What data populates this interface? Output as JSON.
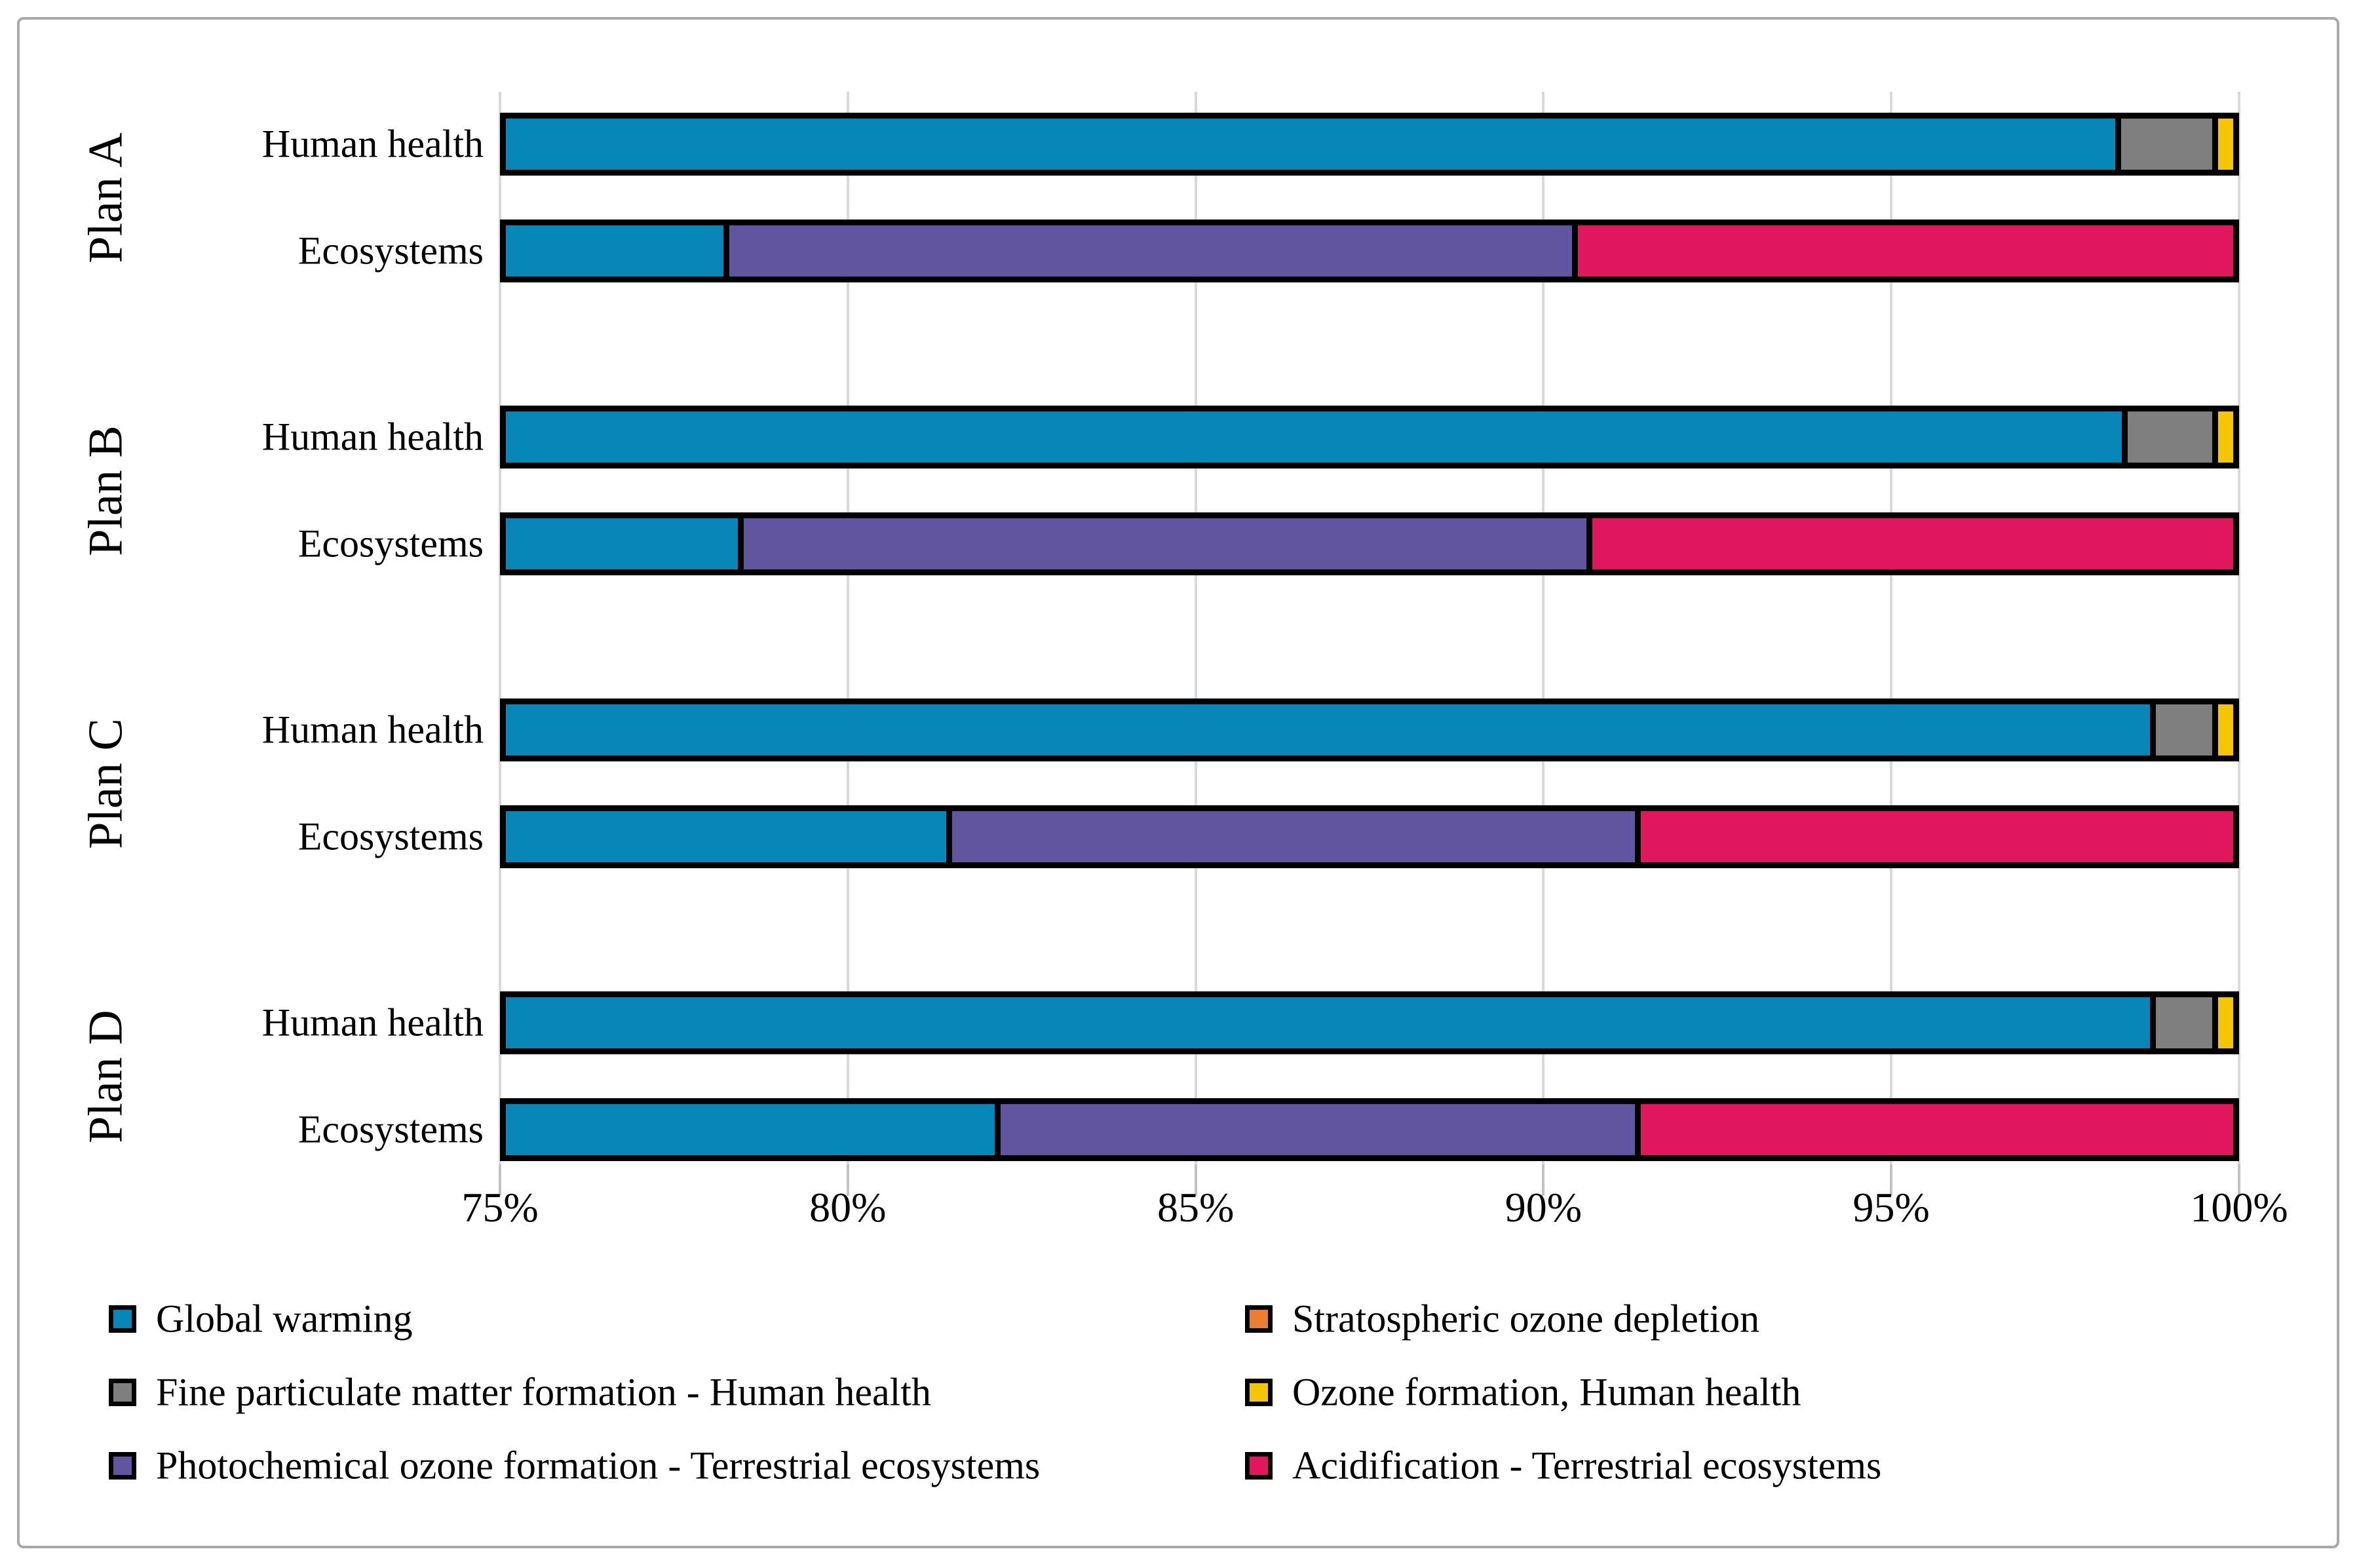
{
  "chart_data": {
    "type": "bar",
    "stacked": true,
    "orientation": "horizontal",
    "axis": {
      "min": 75,
      "max": 100,
      "unit": "%",
      "tick_values": [
        75,
        80,
        85,
        90,
        95,
        100
      ],
      "tick_labels": [
        "75%",
        "80%",
        "85%",
        "90%",
        "95%",
        "100%"
      ],
      "grid": true
    },
    "groups": [
      {
        "label": "Plan A",
        "rows": [
          {
            "label": "Human health",
            "segments": [
              {
                "series": "Global warming",
                "value": 98.3
              },
              {
                "series": "Stratospheric ozone depletion",
                "value": 0
              },
              {
                "series": "Fine particulate matter formation - Human health",
                "value": 1.4
              },
              {
                "series": "Ozone formation, Human health",
                "value": 0.3
              }
            ]
          },
          {
            "label": "Ecosystems",
            "segments": [
              {
                "series": "Global warming",
                "value": 78.3
              },
              {
                "series": "Photochemical ozone formation - Terrestrial ecosystems",
                "value": 12.2
              },
              {
                "series": "Acidification - Terrestrial ecosystems",
                "value": 9.5
              }
            ]
          }
        ]
      },
      {
        "label": "Plan B",
        "rows": [
          {
            "label": "Human health",
            "segments": [
              {
                "series": "Global warming",
                "value": 98.4
              },
              {
                "series": "Stratospheric ozone depletion",
                "value": 0
              },
              {
                "series": "Fine particulate matter formation - Human health",
                "value": 1.3
              },
              {
                "series": "Ozone formation, Human health",
                "value": 0.3
              }
            ]
          },
          {
            "label": "Ecosystems",
            "segments": [
              {
                "series": "Global warming",
                "value": 78.5
              },
              {
                "series": "Photochemical ozone formation - Terrestrial ecosystems",
                "value": 12.2
              },
              {
                "series": "Acidification - Terrestrial ecosystems",
                "value": 9.3
              }
            ]
          }
        ]
      },
      {
        "label": "Plan C",
        "rows": [
          {
            "label": "Human health",
            "segments": [
              {
                "series": "Global warming",
                "value": 98.8
              },
              {
                "series": "Stratospheric ozone depletion",
                "value": 0
              },
              {
                "series": "Fine particulate matter formation - Human health",
                "value": 0.9
              },
              {
                "series": "Ozone formation, Human health",
                "value": 0.3
              }
            ]
          },
          {
            "label": "Ecosystems",
            "segments": [
              {
                "series": "Global warming",
                "value": 81.5
              },
              {
                "series": "Photochemical ozone formation - Terrestrial ecosystems",
                "value": 9.9
              },
              {
                "series": "Acidification - Terrestrial ecosystems",
                "value": 8.6
              }
            ]
          }
        ]
      },
      {
        "label": "Plan D",
        "rows": [
          {
            "label": "Human health",
            "segments": [
              {
                "series": "Global warming",
                "value": 98.8
              },
              {
                "series": "Stratospheric ozone depletion",
                "value": 0
              },
              {
                "series": "Fine particulate matter formation - Human health",
                "value": 0.9
              },
              {
                "series": "Ozone formation, Human health",
                "value": 0.3
              }
            ]
          },
          {
            "label": "Ecosystems",
            "segments": [
              {
                "series": "Global warming",
                "value": 82.2
              },
              {
                "series": "Photochemical ozone formation - Terrestrial ecosystems",
                "value": 9.2
              },
              {
                "series": "Acidification - Terrestrial ecosystems",
                "value": 8.6
              }
            ]
          }
        ]
      }
    ],
    "legend": {
      "position": "bottom",
      "columns": 2,
      "entries": [
        {
          "label": "Global warming",
          "color": "#0786b8"
        },
        {
          "label": "Stratospheric ozone depletion",
          "color": "#ed7d31"
        },
        {
          "label": "Fine particulate matter formation - Human health",
          "color": "#7f7f7f"
        },
        {
          "label": "Ozone formation, Human health",
          "color": "#f4c500"
        },
        {
          "label": "Photochemical ozone formation - Terrestrial ecosystems",
          "color": "#6155a0"
        },
        {
          "label": "Acidification - Terrestrial ecosystems",
          "color": "#e0175f"
        }
      ]
    },
    "series_colors": {
      "Global warming": "#0786b8",
      "Stratospheric ozone depletion": "#ed7d31",
      "Fine particulate matter formation - Human health": "#7f7f7f",
      "Ozone formation, Human health": "#f4c500",
      "Photochemical ozone formation - Terrestrial ecosystems": "#6155a0",
      "Acidification - Terrestrial ecosystems": "#e0175f"
    },
    "gridline_color": "#d9d9d9",
    "bar_border_color": "#000000"
  }
}
